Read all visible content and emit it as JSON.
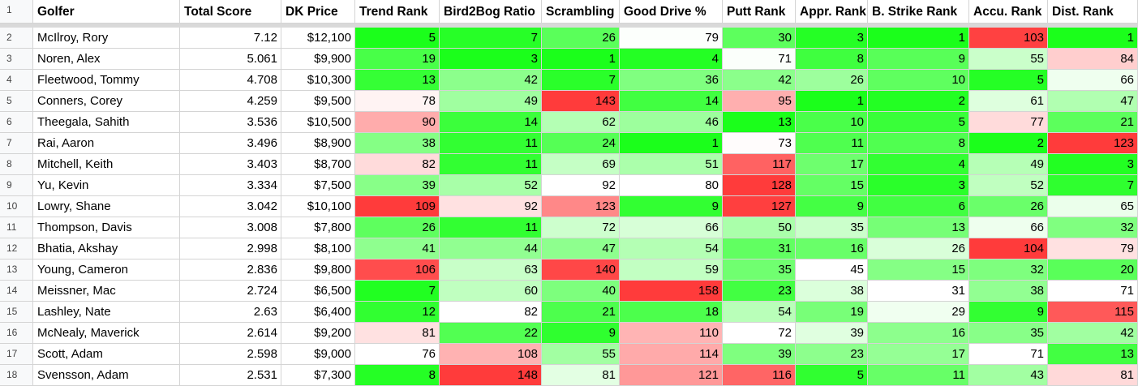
{
  "header_row_number": "1",
  "columns": [
    "Golfer",
    "Total Score",
    "DK Price",
    "Trend Rank",
    "Bird2Bog Ratio",
    "Scrambling",
    "Good Drive %",
    "Putt Rank",
    "Appr. Rank",
    "B. Strike Rank",
    "Accu. Rank",
    "Dist. Rank"
  ],
  "rows": [
    {
      "n": "2",
      "golfer": "McIlroy, Rory",
      "score": "7.12",
      "price": "$12,100",
      "ranks": [
        "5",
        "7",
        "26",
        "79",
        "30",
        "3",
        "1",
        "103",
        "1"
      ]
    },
    {
      "n": "3",
      "golfer": "Noren, Alex",
      "score": "5.061",
      "price": "$9,900",
      "ranks": [
        "19",
        "3",
        "1",
        "4",
        "71",
        "8",
        "9",
        "55",
        "84"
      ]
    },
    {
      "n": "4",
      "golfer": "Fleetwood, Tommy",
      "score": "4.708",
      "price": "$10,300",
      "ranks": [
        "13",
        "42",
        "7",
        "36",
        "42",
        "26",
        "10",
        "5",
        "66"
      ]
    },
    {
      "n": "5",
      "golfer": "Conners, Corey",
      "score": "4.259",
      "price": "$9,500",
      "ranks": [
        "78",
        "49",
        "143",
        "14",
        "95",
        "1",
        "2",
        "61",
        "47"
      ]
    },
    {
      "n": "6",
      "golfer": "Theegala, Sahith",
      "score": "3.536",
      "price": "$10,500",
      "ranks": [
        "90",
        "14",
        "62",
        "46",
        "13",
        "10",
        "5",
        "77",
        "21"
      ]
    },
    {
      "n": "7",
      "golfer": "Rai, Aaron",
      "score": "3.496",
      "price": "$8,900",
      "ranks": [
        "38",
        "11",
        "24",
        "1",
        "73",
        "11",
        "8",
        "2",
        "123"
      ]
    },
    {
      "n": "8",
      "golfer": "Mitchell, Keith",
      "score": "3.403",
      "price": "$8,700",
      "ranks": [
        "82",
        "11",
        "69",
        "51",
        "117",
        "17",
        "4",
        "49",
        "3"
      ]
    },
    {
      "n": "9",
      "golfer": "Yu, Kevin",
      "score": "3.334",
      "price": "$7,500",
      "ranks": [
        "39",
        "52",
        "92",
        "80",
        "128",
        "15",
        "3",
        "52",
        "7"
      ]
    },
    {
      "n": "10",
      "golfer": "Lowry, Shane",
      "score": "3.042",
      "price": "$10,100",
      "ranks": [
        "109",
        "92",
        "123",
        "9",
        "127",
        "9",
        "6",
        "26",
        "65"
      ]
    },
    {
      "n": "11",
      "golfer": "Thompson, Davis",
      "score": "3.008",
      "price": "$7,800",
      "ranks": [
        "26",
        "11",
        "72",
        "66",
        "50",
        "35",
        "13",
        "66",
        "32"
      ]
    },
    {
      "n": "12",
      "golfer": "Bhatia, Akshay",
      "score": "2.998",
      "price": "$8,100",
      "ranks": [
        "41",
        "44",
        "47",
        "54",
        "31",
        "16",
        "26",
        "104",
        "79"
      ]
    },
    {
      "n": "13",
      "golfer": "Young, Cameron",
      "score": "2.836",
      "price": "$9,800",
      "ranks": [
        "106",
        "63",
        "140",
        "59",
        "35",
        "45",
        "15",
        "32",
        "20"
      ]
    },
    {
      "n": "14",
      "golfer": "Meissner, Mac",
      "score": "2.724",
      "price": "$6,500",
      "ranks": [
        "7",
        "60",
        "40",
        "158",
        "23",
        "38",
        "31",
        "38",
        "71"
      ]
    },
    {
      "n": "15",
      "golfer": "Lashley, Nate",
      "score": "2.63",
      "price": "$6,400",
      "ranks": [
        "12",
        "82",
        "21",
        "18",
        "54",
        "19",
        "29",
        "9",
        "115"
      ]
    },
    {
      "n": "16",
      "golfer": "McNealy, Maverick",
      "score": "2.614",
      "price": "$9,200",
      "ranks": [
        "81",
        "22",
        "9",
        "110",
        "72",
        "39",
        "16",
        "35",
        "42"
      ]
    },
    {
      "n": "17",
      "golfer": "Scott, Adam",
      "score": "2.598",
      "price": "$9,000",
      "ranks": [
        "76",
        "108",
        "55",
        "114",
        "39",
        "23",
        "17",
        "71",
        "13"
      ]
    },
    {
      "n": "18",
      "golfer": "Svensson, Adam",
      "score": "2.531",
      "price": "$7,300",
      "ranks": [
        "8",
        "148",
        "81",
        "121",
        "116",
        "5",
        "11",
        "43",
        "81"
      ]
    }
  ],
  "color_scales": {
    "Trend Rank": {
      "min": 5,
      "mid": 76,
      "max": 109
    },
    "Bird2Bog Ratio": {
      "min": 3,
      "mid": 82,
      "max": 148
    },
    "Scrambling": {
      "min": 1,
      "mid": 92,
      "max": 143
    },
    "Good Drive %": {
      "min": 1,
      "mid": 80,
      "max": 158
    },
    "Putt Rank": {
      "min": 13,
      "mid": 72,
      "max": 128
    },
    "Appr. Rank": {
      "min": 1,
      "mid": 45,
      "max": 45
    },
    "B. Strike Rank": {
      "min": 1,
      "mid": 31,
      "max": 31
    },
    "Accu. Rank": {
      "min": 2,
      "mid": 71,
      "max": 104
    },
    "Dist. Rank": {
      "min": 1,
      "mid": 71,
      "max": 123
    }
  },
  "colors": {
    "best": "#1bff1b",
    "mid": "#ffffff",
    "worst": "#ff3b3b",
    "gridline": "#d4d4d4",
    "row_header_bg": "#f8f9fa",
    "freeze_bar": "#d9d9d9"
  }
}
